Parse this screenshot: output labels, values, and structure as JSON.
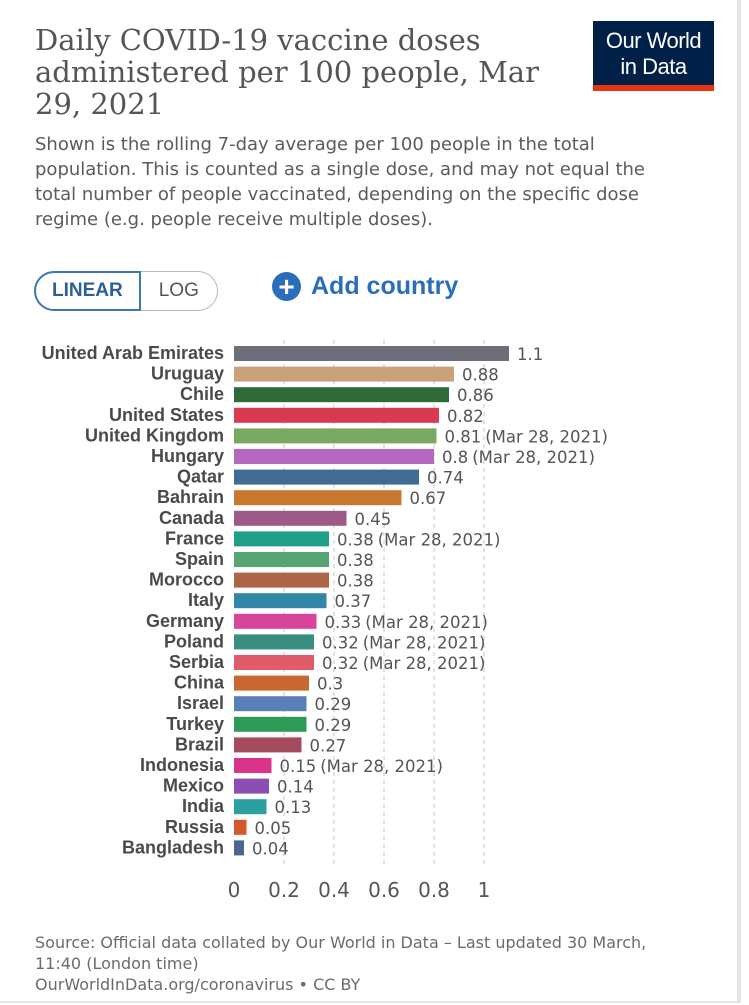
{
  "title": "Daily COVID-19 vaccine doses administered per 100 people, Mar 29, 2021",
  "subtitle": "Shown is the rolling 7-day average per 100 people in the total population. This is counted as a single dose, and may not equal the total number of people vaccinated, depending on the specific dose regime (e.g. people receive multiple doses).",
  "logo": {
    "line1": "Our World",
    "line2": "in Data",
    "bg": "#002147",
    "accent": "#e63312"
  },
  "controls": {
    "linear": "LINEAR",
    "log": "LOG",
    "add_country": "Add country",
    "add_icon": "plus-circle-icon"
  },
  "source": {
    "line1": "Source: Official data collated by Our World in Data – Last updated 30 March, 11:40 (London time)",
    "line2": "OurWorldInData.org/coronavirus • CC BY"
  },
  "chart_data": {
    "type": "bar",
    "orientation": "horizontal",
    "xlim": [
      0,
      1.1
    ],
    "ticks": [
      0,
      0.2,
      0.4,
      0.6,
      0.8,
      1
    ],
    "tick_labels": [
      "0",
      "0.2",
      "0.4",
      "0.6",
      "0.8",
      "1"
    ],
    "grid": true,
    "bars": [
      {
        "country": "United Arab Emirates",
        "value": 1.1,
        "label": "1.1",
        "note": "",
        "color": "#6e6e7a"
      },
      {
        "country": "Uruguay",
        "value": 0.88,
        "label": "0.88",
        "note": "",
        "color": "#c9a27a"
      },
      {
        "country": "Chile",
        "value": 0.86,
        "label": "0.86",
        "note": "",
        "color": "#2f6a3a"
      },
      {
        "country": "United States",
        "value": 0.82,
        "label": "0.82",
        "note": "",
        "color": "#d93a52"
      },
      {
        "country": "United Kingdom",
        "value": 0.81,
        "label": "0.81",
        "note": "(Mar 28, 2021)",
        "color": "#79a863"
      },
      {
        "country": "Hungary",
        "value": 0.8,
        "label": "0.8",
        "note": "(Mar 28, 2021)",
        "color": "#b468c0"
      },
      {
        "country": "Qatar",
        "value": 0.74,
        "label": "0.74",
        "note": "",
        "color": "#3f6b95"
      },
      {
        "country": "Bahrain",
        "value": 0.67,
        "label": "0.67",
        "note": "",
        "color": "#c8782e"
      },
      {
        "country": "Canada",
        "value": 0.45,
        "label": "0.45",
        "note": "",
        "color": "#9e5a86"
      },
      {
        "country": "France",
        "value": 0.38,
        "label": "0.38",
        "note": "(Mar 28, 2021)",
        "color": "#1f9e88"
      },
      {
        "country": "Spain",
        "value": 0.38,
        "label": "0.38",
        "note": "",
        "color": "#55a472"
      },
      {
        "country": "Morocco",
        "value": 0.38,
        "label": "0.38",
        "note": "",
        "color": "#ad6548"
      },
      {
        "country": "Italy",
        "value": 0.37,
        "label": "0.37",
        "note": "",
        "color": "#3286a8"
      },
      {
        "country": "Germany",
        "value": 0.33,
        "label": "0.33",
        "note": "(Mar 28, 2021)",
        "color": "#d9439a"
      },
      {
        "country": "Poland",
        "value": 0.32,
        "label": "0.32",
        "note": "(Mar 28, 2021)",
        "color": "#3a8e80"
      },
      {
        "country": "Serbia",
        "value": 0.32,
        "label": "0.32",
        "note": "(Mar 28, 2021)",
        "color": "#e05a6a"
      },
      {
        "country": "China",
        "value": 0.3,
        "label": "0.3",
        "note": "",
        "color": "#c9682e"
      },
      {
        "country": "Israel",
        "value": 0.29,
        "label": "0.29",
        "note": "",
        "color": "#5a7fb8"
      },
      {
        "country": "Turkey",
        "value": 0.29,
        "label": "0.29",
        "note": "",
        "color": "#2e9a58"
      },
      {
        "country": "Brazil",
        "value": 0.27,
        "label": "0.27",
        "note": "",
        "color": "#a34a5c"
      },
      {
        "country": "Indonesia",
        "value": 0.15,
        "label": "0.15",
        "note": "(Mar 28, 2021)",
        "color": "#d9338a"
      },
      {
        "country": "Mexico",
        "value": 0.14,
        "label": "0.14",
        "note": "",
        "color": "#8a4fb0"
      },
      {
        "country": "India",
        "value": 0.13,
        "label": "0.13",
        "note": "",
        "color": "#2aa0a0"
      },
      {
        "country": "Russia",
        "value": 0.05,
        "label": "0.05",
        "note": "",
        "color": "#d15a28"
      },
      {
        "country": "Bangladesh",
        "value": 0.04,
        "label": "0.04",
        "note": "",
        "color": "#4a6690"
      }
    ]
  }
}
